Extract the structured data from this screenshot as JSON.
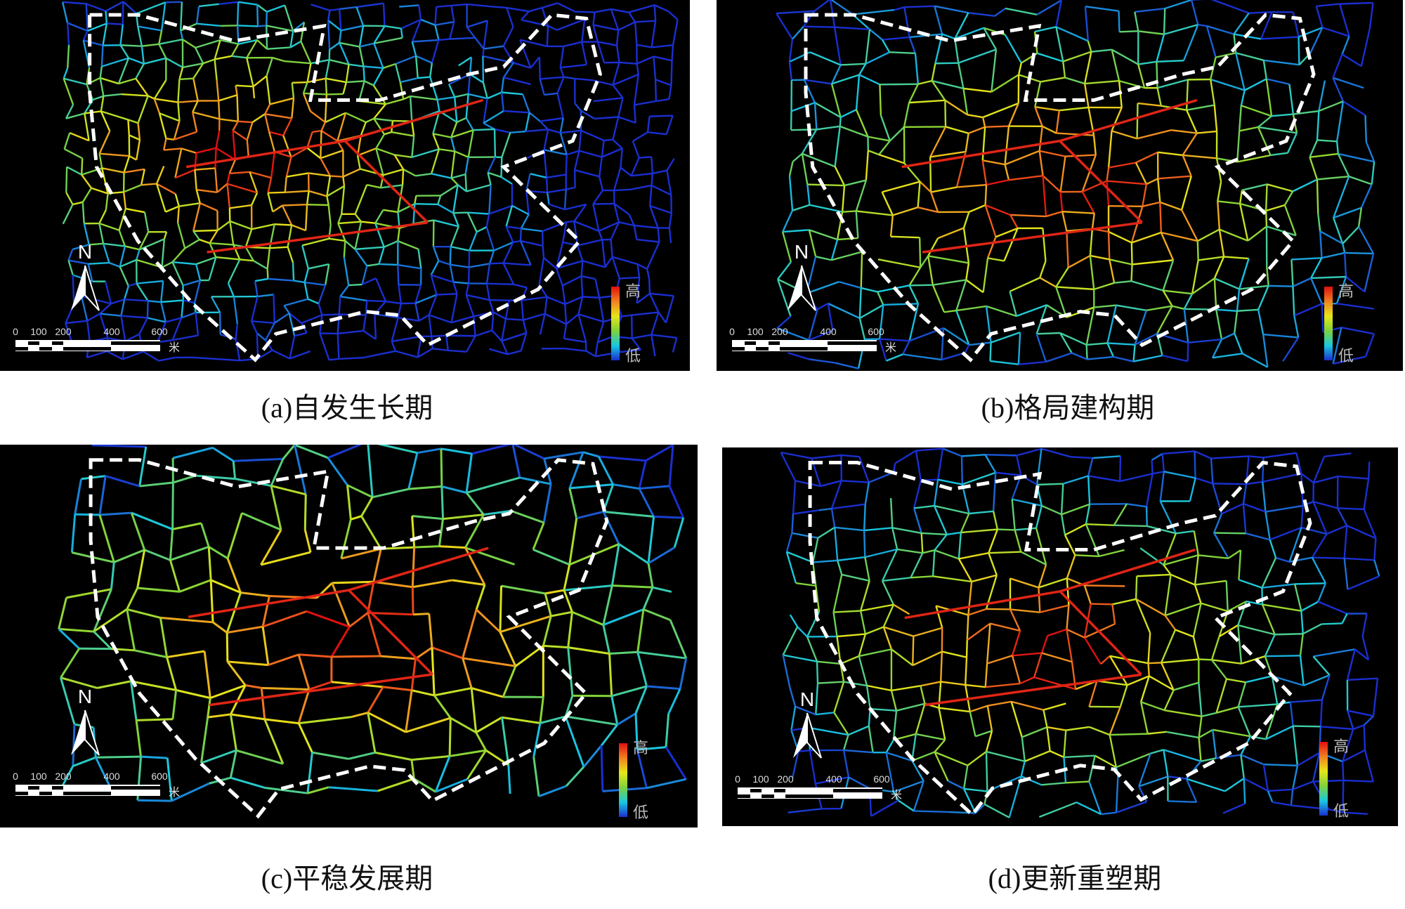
{
  "figures": [
    {
      "id": "a",
      "caption": "(a)自发生长期"
    },
    {
      "id": "b",
      "caption": "(b)格局建构期"
    },
    {
      "id": "c",
      "caption": "(c)平稳发展期"
    },
    {
      "id": "d",
      "caption": "(d)更新重塑期"
    }
  ],
  "map": {
    "north_label": "N",
    "scale_ticks": [
      "0",
      "100",
      "200",
      "400",
      "600"
    ],
    "scale_unit": "米",
    "legend_high": "高",
    "legend_low": "低",
    "boundary_color": "#ffffff",
    "colormap": [
      "#1a2fd0",
      "#19c8e0",
      "#7fd23a",
      "#e6e619",
      "#f08020",
      "#e01010"
    ]
  }
}
